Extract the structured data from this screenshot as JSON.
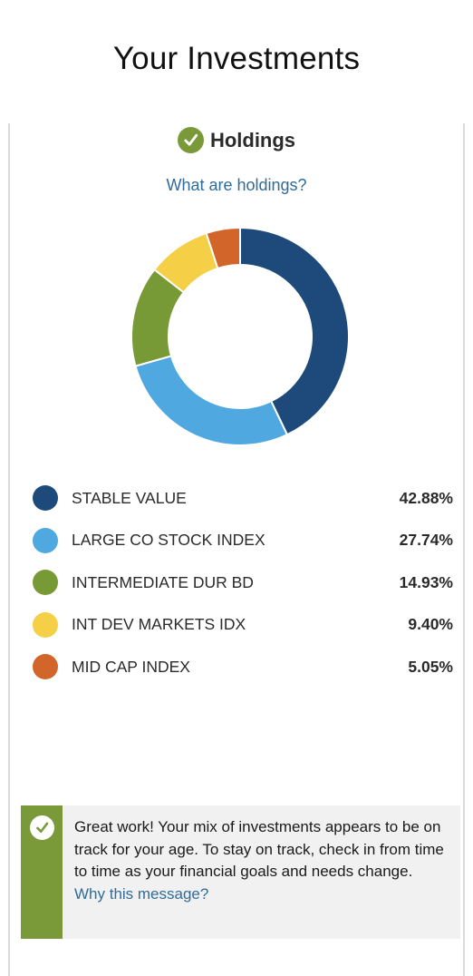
{
  "header": {
    "title": "Your Investments"
  },
  "holdings": {
    "heading": "Holdings",
    "help_link": "What are holdings?"
  },
  "chart_data": {
    "type": "pie",
    "categories": [
      "STABLE VALUE",
      "LARGE CO STOCK INDEX",
      "INTERMEDIATE DUR BD",
      "INT DEV MARKETS IDX",
      "MID CAP INDEX"
    ],
    "values": [
      42.88,
      27.74,
      14.93,
      9.4,
      5.05
    ],
    "colors": [
      "#1d4a7a",
      "#4fa8e0",
      "#789a36",
      "#f5cf45",
      "#d2652a"
    ],
    "style": "donut"
  },
  "legend": [
    {
      "name": "STABLE VALUE",
      "percent": "42.88%",
      "color": "#1d4a7a"
    },
    {
      "name": "LARGE CO STOCK INDEX",
      "percent": "27.74%",
      "color": "#4fa8e0"
    },
    {
      "name": "INTERMEDIATE DUR BD",
      "percent": "14.93%",
      "color": "#789a36"
    },
    {
      "name": "INT DEV MARKETS IDX",
      "percent": "9.40%",
      "color": "#f5cf45"
    },
    {
      "name": "MID CAP INDEX",
      "percent": "5.05%",
      "color": "#d2652a"
    }
  ],
  "message": {
    "text": "Great work! Your mix of investments appears to be on track for your age. To stay on track, check in from time to time as your financial goals and needs change.",
    "link": "Why this message?",
    "icon": "check-icon",
    "accent_color": "#7a9a3a"
  }
}
